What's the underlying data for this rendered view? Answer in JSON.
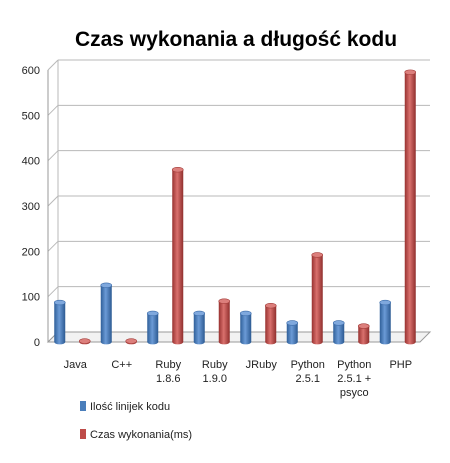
{
  "chart_data": {
    "type": "bar",
    "title": "Czas wykonania a długość kodu",
    "categories": [
      [
        "Java"
      ],
      [
        "C++"
      ],
      [
        "Ruby",
        "1.8.6"
      ],
      [
        "Ruby",
        "1.9.0"
      ],
      [
        "JRuby"
      ],
      [
        "Python",
        "2.5.1"
      ],
      [
        "Python",
        "2.5.1 +",
        "psyco"
      ],
      [
        "PHP"
      ]
    ],
    "series": [
      {
        "name": "Ilość linijek kodu",
        "color": "#4a7ebb",
        "values": [
          87,
          125,
          63,
          63,
          63,
          42,
          42,
          87
        ]
      },
      {
        "name": "Czas wykonania(ms)",
        "color": "#be4b48",
        "values": [
          2,
          2,
          380,
          90,
          80,
          192,
          35,
          595
        ]
      }
    ],
    "ylim": [
      0,
      600
    ],
    "yticks": [
      0,
      100,
      200,
      300,
      400,
      500,
      600
    ],
    "grid": true,
    "legend_position": "bottom-left"
  }
}
